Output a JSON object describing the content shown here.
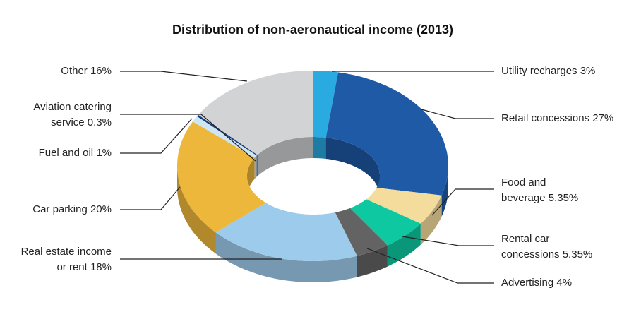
{
  "chart_data": {
    "type": "pie",
    "title": "Distribution of non-aeronautical income (2013)",
    "categories": [
      "Utility recharges",
      "Retail concessions",
      "Food and beverage",
      "Rental car concessions",
      "Advertising",
      "Real estate income or rent",
      "Car parking",
      "Fuel and oil",
      "Aviation catering service",
      "Other"
    ],
    "values": [
      3,
      27,
      5.35,
      5.35,
      4,
      18,
      20,
      1,
      0.3,
      16
    ],
    "value_labels": [
      "3%",
      "27%",
      "5.35%",
      "5.35%",
      "4%",
      "18%",
      "20%",
      "1%",
      "0.3%",
      "16%"
    ],
    "colors": [
      "#29abe2",
      "#1f5aa6",
      "#f4dc9c",
      "#0dc8a0",
      "#636363",
      "#9dcbeb",
      "#ecb73a",
      "#cde6f5",
      "#1a3a7a",
      "#d2d3d5"
    ]
  }
}
